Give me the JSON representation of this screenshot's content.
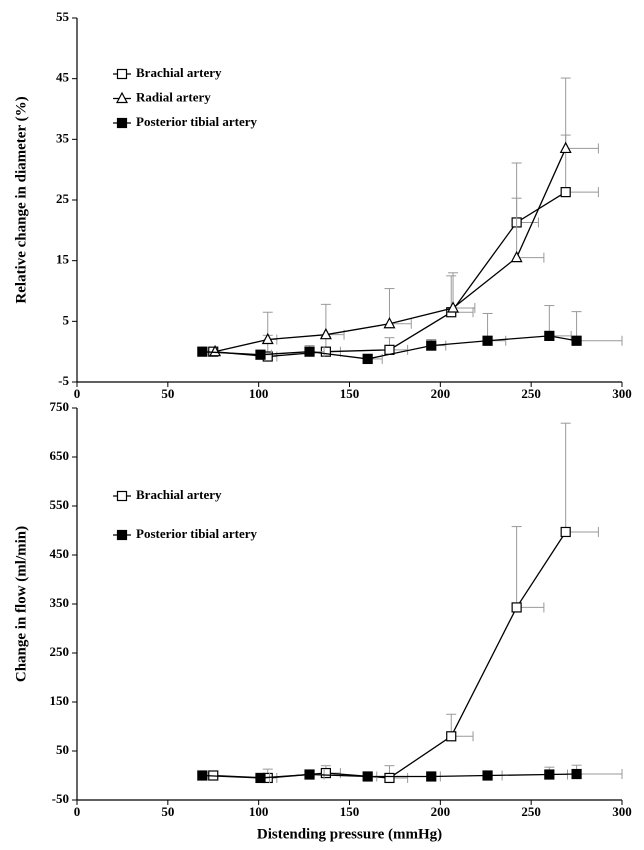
{
  "chart_data": [
    {
      "type": "line",
      "y_label": "Relative change in diameter (%)",
      "xlim": [
        0,
        300
      ],
      "xticks": [
        0,
        50,
        100,
        150,
        200,
        250,
        300
      ],
      "ylim": [
        -5,
        55
      ],
      "yticks": [
        -5,
        5,
        15,
        25,
        35,
        45,
        55
      ],
      "legend": "upper left",
      "series": [
        {
          "name": "Brachial artery",
          "color": "#000000",
          "marker": "open-square",
          "x": [
            75,
            105,
            137,
            172,
            206,
            242,
            269
          ],
          "values": [
            0,
            -0.8,
            0,
            0.3,
            6.5,
            21.3,
            26.3
          ],
          "yerr": [
            0,
            3.5,
            2.5,
            2,
            6,
            9.8,
            9.4
          ],
          "xerr": [
            0,
            5,
            8,
            10,
            12,
            12,
            18
          ]
        },
        {
          "name": "Radial artery",
          "color": "#000000",
          "marker": "open-triangle",
          "x": [
            76,
            105,
            137,
            172,
            207,
            242,
            269
          ],
          "values": [
            0,
            2,
            2.8,
            4.6,
            7.2,
            15.5,
            33.5
          ],
          "yerr": [
            0,
            4.5,
            5,
            5.8,
            5.8,
            9.8,
            11.6
          ],
          "xerr": [
            0,
            5,
            10,
            12,
            12,
            15,
            18
          ]
        },
        {
          "name": "Posterior tibial artery",
          "color": "#000000",
          "marker": "filled-square",
          "x": [
            69,
            101,
            128,
            160,
            195,
            226,
            260,
            275
          ],
          "values": [
            0,
            -0.5,
            0,
            -1.2,
            1,
            1.8,
            2.6,
            1.8
          ],
          "yerr": [
            0,
            0.5,
            1,
            0.8,
            1,
            4.5,
            5,
            4.8
          ],
          "xerr": [
            0,
            6,
            8,
            8,
            8,
            10,
            12,
            25
          ]
        }
      ]
    },
    {
      "type": "line",
      "y_label": "Change in flow (ml/min)",
      "x_label": "Distending pressure (mmHg)",
      "xlim": [
        0,
        300
      ],
      "xticks": [
        0,
        50,
        100,
        150,
        200,
        250,
        300
      ],
      "ylim": [
        -50,
        750
      ],
      "yticks": [
        -50,
        50,
        150,
        250,
        350,
        450,
        550,
        650,
        750
      ],
      "legend": "upper left",
      "series": [
        {
          "name": "Brachial artery",
          "color": "#000000",
          "marker": "open-square",
          "x": [
            75,
            105,
            137,
            172,
            206,
            242,
            269
          ],
          "values": [
            0,
            -5,
            5,
            -5,
            80,
            343,
            497
          ],
          "yerr": [
            0,
            18,
            15,
            25,
            45,
            165,
            222
          ],
          "xerr": [
            0,
            5,
            8,
            10,
            12,
            15,
            18
          ]
        },
        {
          "name": "Posterior tibial artery",
          "color": "#000000",
          "marker": "filled-square",
          "x": [
            69,
            101,
            128,
            160,
            195,
            226,
            260,
            275
          ],
          "values": [
            0,
            -5,
            2,
            -2,
            -2,
            0,
            2,
            3
          ],
          "yerr": [
            0,
            5,
            5,
            3,
            3,
            3,
            15,
            18
          ],
          "xerr": [
            0,
            5,
            8,
            5,
            5,
            8,
            10,
            25
          ]
        }
      ]
    }
  ]
}
